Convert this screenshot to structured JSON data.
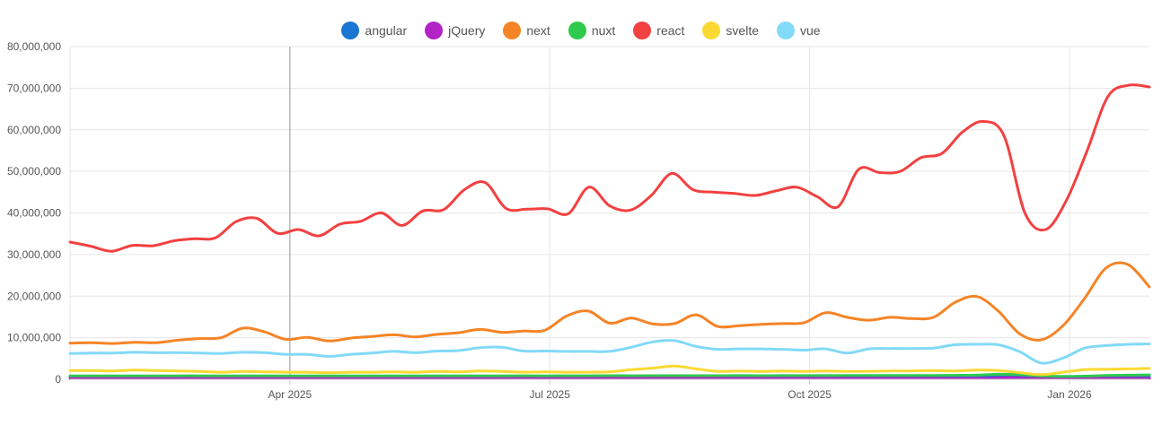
{
  "chart_data": {
    "type": "line",
    "title": "",
    "xlabel": "",
    "ylabel": "",
    "ylim": [
      0,
      80000000
    ],
    "y_ticks": [
      0,
      10000000,
      20000000,
      30000000,
      40000000,
      50000000,
      60000000,
      70000000,
      80000000
    ],
    "y_tick_labels": [
      "0",
      "10,000,000",
      "20,000,000",
      "30,000,000",
      "40,000,000",
      "50,000,000",
      "60,000,000",
      "70,000,000",
      "80,000,000"
    ],
    "x_ticks": [
      {
        "label": "Apr 2025",
        "week": 11
      },
      {
        "label": "Jul 2025",
        "week": 24
      },
      {
        "label": "Oct 2025",
        "week": 37
      },
      {
        "label": "Jan 2026",
        "week": 50
      }
    ],
    "x_range_weeks": [
      0,
      54
    ],
    "legend_position": "top-center",
    "series": [
      {
        "name": "angular",
        "color": "#1976d2",
        "values": [
          500000,
          500000,
          510000,
          500000,
          520000,
          510000,
          530000,
          520000,
          520000,
          530000,
          540000,
          520000,
          530000,
          540000,
          520000,
          530000,
          540000,
          550000,
          540000,
          550000,
          560000,
          550000,
          560000,
          570000,
          560000,
          570000,
          560000,
          570000,
          580000,
          570000,
          580000,
          590000,
          580000,
          590000,
          600000,
          600000,
          610000,
          600000,
          610000,
          620000,
          610000,
          620000,
          630000,
          640000,
          650000,
          660000,
          640000,
          600000,
          500000,
          450000,
          550000,
          650000,
          700000,
          720000,
          720000
        ]
      },
      {
        "name": "jQuery",
        "color": "#b123c5",
        "values": [
          150000,
          150000,
          150000,
          150000,
          150000,
          150000,
          150000,
          150000,
          150000,
          150000,
          150000,
          150000,
          150000,
          150000,
          150000,
          150000,
          150000,
          150000,
          150000,
          150000,
          150000,
          150000,
          150000,
          150000,
          150000,
          150000,
          150000,
          150000,
          150000,
          150000,
          150000,
          150000,
          150000,
          150000,
          150000,
          150000,
          150000,
          150000,
          150000,
          150000,
          150000,
          150000,
          150000,
          150000,
          150000,
          150000,
          200000,
          400000,
          150000,
          150000,
          150000,
          150000,
          150000,
          150000,
          150000
        ]
      },
      {
        "name": "next",
        "color": "#f58426",
        "values": [
          8700000,
          8800000,
          8600000,
          8900000,
          8800000,
          9400000,
          9800000,
          10000000,
          12300000,
          11400000,
          9600000,
          10100000,
          9200000,
          9900000,
          10300000,
          10700000,
          10200000,
          10800000,
          11200000,
          12000000,
          11300000,
          11600000,
          11800000,
          15200000,
          16400000,
          13500000,
          14700000,
          13300000,
          13400000,
          15500000,
          12700000,
          12900000,
          13200000,
          13400000,
          13600000,
          16000000,
          14900000,
          14200000,
          14900000,
          14600000,
          14900000,
          18500000,
          19900000,
          16400000,
          10900000,
          9500000,
          12900000,
          19500000,
          26800000,
          27600000,
          22200000
        ]
      },
      {
        "name": "nuxt",
        "color": "#2ec94e",
        "values": [
          800000,
          800000,
          800000,
          820000,
          800000,
          820000,
          830000,
          810000,
          800000,
          800000,
          790000,
          800000,
          810000,
          800000,
          800000,
          820000,
          810000,
          820000,
          830000,
          820000,
          830000,
          840000,
          830000,
          840000,
          850000,
          860000,
          850000,
          860000,
          870000,
          860000,
          870000,
          880000,
          870000,
          880000,
          890000,
          890000,
          900000,
          900000,
          910000,
          920000,
          920000,
          950000,
          1000000,
          1200000,
          1100000,
          800000,
          700000,
          750000,
          900000,
          1000000,
          1050000
        ]
      },
      {
        "name": "react",
        "color": "#f34040",
        "values": [
          33000000,
          32000000,
          30800000,
          32200000,
          32100000,
          33300000,
          33800000,
          34000000,
          37900000,
          38700000,
          35100000,
          36000000,
          34500000,
          37300000,
          38000000,
          40000000,
          37000000,
          40500000,
          40800000,
          45600000,
          47300000,
          41100000,
          40900000,
          41000000,
          39800000,
          46200000,
          41700000,
          40700000,
          44200000,
          49500000,
          45600000,
          45000000,
          44700000,
          44200000,
          45300000,
          46200000,
          43900000,
          41500000,
          50500000,
          49700000,
          50000000,
          53300000,
          54300000,
          59500000,
          62000000,
          58500000,
          40000000,
          36000000,
          43000000,
          55000000,
          68000000,
          70700000,
          70300000
        ]
      },
      {
        "name": "svelte",
        "color": "#fad933",
        "values": [
          2100000,
          2100000,
          2000000,
          2200000,
          2100000,
          2000000,
          1900000,
          1700000,
          1900000,
          1800000,
          1700000,
          1700000,
          1600000,
          1700000,
          1700000,
          1800000,
          1700000,
          1900000,
          1800000,
          2000000,
          1900000,
          1700000,
          1800000,
          1700000,
          1700000,
          1800000,
          2300000,
          2700000,
          3200000,
          2500000,
          1900000,
          2000000,
          1900000,
          2000000,
          1900000,
          2000000,
          1900000,
          1900000,
          2000000,
          2000000,
          2100000,
          2000000,
          2200000,
          2100000,
          1600000,
          1100000,
          1700000,
          2300000,
          2400000,
          2500000,
          2600000
        ]
      },
      {
        "name": "vue",
        "color": "#82d9f8",
        "values": [
          6200000,
          6300000,
          6300000,
          6500000,
          6400000,
          6400000,
          6300000,
          6200000,
          6500000,
          6400000,
          6000000,
          6000000,
          5500000,
          6000000,
          6300000,
          6700000,
          6400000,
          6800000,
          6900000,
          7600000,
          7700000,
          6800000,
          6800000,
          6700000,
          6700000,
          6700000,
          7700000,
          9000000,
          9300000,
          7900000,
          7200000,
          7300000,
          7300000,
          7200000,
          7000000,
          7300000,
          6300000,
          7300000,
          7400000,
          7400000,
          7500000,
          8300000,
          8400000,
          8300000,
          6600000,
          3900000,
          5100000,
          7500000,
          8100000,
          8400000,
          8500000
        ]
      }
    ]
  }
}
